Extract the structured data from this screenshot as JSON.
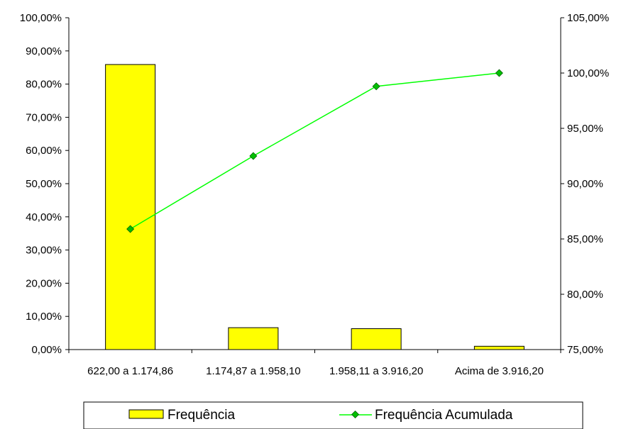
{
  "chart_data": {
    "type": "bar",
    "categories": [
      "622,00 a 1.174,86",
      "1.174,87 a 1.958,10",
      "1.958,11 a 3.916,20",
      "Acima de 3.916,20"
    ],
    "series": [
      {
        "name": "Frequência",
        "type": "bar",
        "axis": "left",
        "color": "#FFFF00",
        "values": [
          85.9,
          6.6,
          6.3,
          1.0
        ]
      },
      {
        "name": "Frequência Acumulada",
        "type": "line",
        "axis": "right",
        "color": "#00FF00",
        "values": [
          85.9,
          92.5,
          98.8,
          100.0
        ]
      }
    ],
    "y_left": {
      "ylim": [
        0,
        100
      ],
      "ticks": [
        0,
        10,
        20,
        30,
        40,
        50,
        60,
        70,
        80,
        90,
        100
      ],
      "tick_labels": [
        "0,00%",
        "10,00%",
        "20,00%",
        "30,00%",
        "40,00%",
        "50,00%",
        "60,00%",
        "70,00%",
        "80,00%",
        "90,00%",
        "100,00%"
      ]
    },
    "y_right": {
      "ylim": [
        75,
        105
      ],
      "ticks": [
        75,
        80,
        85,
        90,
        95,
        100,
        105
      ],
      "tick_labels": [
        "75,00%",
        "80,00%",
        "85,00%",
        "90,00%",
        "95,00%",
        "100,00%",
        "105,00%"
      ]
    },
    "grid": false,
    "legend": {
      "placement": "bottom",
      "labels": [
        "Frequência",
        "Frequência Acumulada"
      ]
    },
    "title": "",
    "xlabel": "",
    "ylabel": ""
  }
}
